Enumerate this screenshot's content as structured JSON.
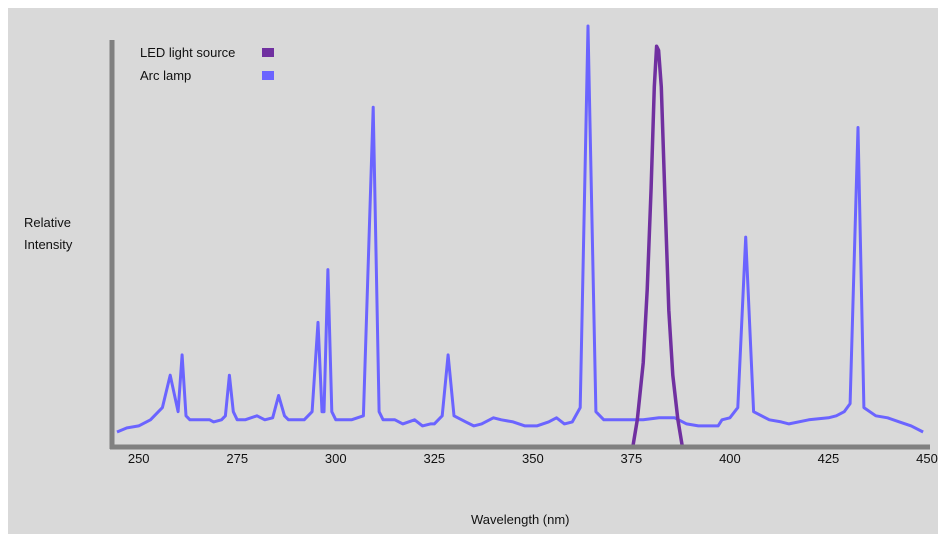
{
  "chart_data": {
    "type": "line",
    "title": "",
    "xlabel": "Wavelength (nm)",
    "ylabel": "Relative Intensity",
    "xlim": [
      245,
      450
    ],
    "ylim": [
      0,
      100
    ],
    "x_ticks": [
      "250",
      "275",
      "300",
      "325",
      "350",
      "375",
      "400",
      "425",
      "450"
    ],
    "y_ticks": [],
    "grid": false,
    "legend_position": "top-left",
    "series": [
      {
        "name": "LED light source",
        "color": "#7030a0",
        "points": [
          [
            375.3,
            -4
          ],
          [
            376.5,
            3
          ],
          [
            378,
            17
          ],
          [
            379,
            35
          ],
          [
            380,
            60
          ],
          [
            380.8,
            85
          ],
          [
            381.4,
            95
          ],
          [
            381.9,
            94
          ],
          [
            382.6,
            85
          ],
          [
            383.5,
            58
          ],
          [
            384.5,
            30
          ],
          [
            385.5,
            14
          ],
          [
            386.8,
            3
          ],
          [
            388,
            -4
          ]
        ]
      },
      {
        "name": "Arc lamp",
        "color": "#6b64ff",
        "points": [
          [
            244.5,
            0
          ],
          [
            247,
            1
          ],
          [
            250,
            1.5
          ],
          [
            253,
            3
          ],
          [
            256,
            6
          ],
          [
            258,
            14
          ],
          [
            260,
            5
          ],
          [
            261,
            19
          ],
          [
            262,
            4
          ],
          [
            263,
            3
          ],
          [
            265,
            3
          ],
          [
            268,
            3
          ],
          [
            269,
            2.5
          ],
          [
            271,
            3
          ],
          [
            272,
            4
          ],
          [
            273,
            14
          ],
          [
            274,
            5
          ],
          [
            275,
            3
          ],
          [
            277,
            3
          ],
          [
            280,
            4
          ],
          [
            282,
            3
          ],
          [
            284,
            3.5
          ],
          [
            285.5,
            9
          ],
          [
            287,
            4
          ],
          [
            288,
            3
          ],
          [
            290,
            3
          ],
          [
            292,
            3
          ],
          [
            294,
            5
          ],
          [
            295.5,
            27
          ],
          [
            296.5,
            5
          ],
          [
            297,
            5
          ],
          [
            298,
            40
          ],
          [
            299,
            5
          ],
          [
            300,
            3
          ],
          [
            302,
            3
          ],
          [
            304,
            3
          ],
          [
            307,
            4
          ],
          [
            309.5,
            80
          ],
          [
            311,
            5
          ],
          [
            312,
            3
          ],
          [
            315,
            3
          ],
          [
            317,
            2
          ],
          [
            320,
            3
          ],
          [
            322,
            1.5
          ],
          [
            324,
            2
          ],
          [
            325,
            2
          ],
          [
            327,
            4
          ],
          [
            328.5,
            19
          ],
          [
            330,
            4
          ],
          [
            333,
            2.5
          ],
          [
            335,
            1.5
          ],
          [
            337,
            2
          ],
          [
            340,
            3.5
          ],
          [
            342,
            3
          ],
          [
            345,
            2.5
          ],
          [
            348,
            1.5
          ],
          [
            351,
            1.5
          ],
          [
            354,
            2.5
          ],
          [
            356,
            3.5
          ],
          [
            358,
            2
          ],
          [
            360,
            2.5
          ],
          [
            362,
            6
          ],
          [
            364,
            100
          ],
          [
            366,
            5
          ],
          [
            368,
            3
          ],
          [
            372,
            3
          ],
          [
            375,
            3
          ],
          [
            378,
            3
          ],
          [
            382,
            3.5
          ],
          [
            386,
            3.5
          ],
          [
            389,
            2
          ],
          [
            392,
            1.5
          ],
          [
            395,
            1.5
          ],
          [
            397,
            1.5
          ],
          [
            398,
            3
          ],
          [
            400,
            3.5
          ],
          [
            402,
            6
          ],
          [
            404,
            48
          ],
          [
            406,
            5
          ],
          [
            410,
            3
          ],
          [
            413,
            2.5
          ],
          [
            415,
            2
          ],
          [
            420,
            3
          ],
          [
            425,
            3.5
          ],
          [
            427,
            4
          ],
          [
            429,
            5
          ],
          [
            430.5,
            7
          ],
          [
            432.5,
            75
          ],
          [
            434,
            6
          ],
          [
            437,
            4
          ],
          [
            440,
            3.5
          ],
          [
            443,
            2.5
          ],
          [
            446,
            1.5
          ],
          [
            449,
            0
          ]
        ]
      }
    ]
  }
}
